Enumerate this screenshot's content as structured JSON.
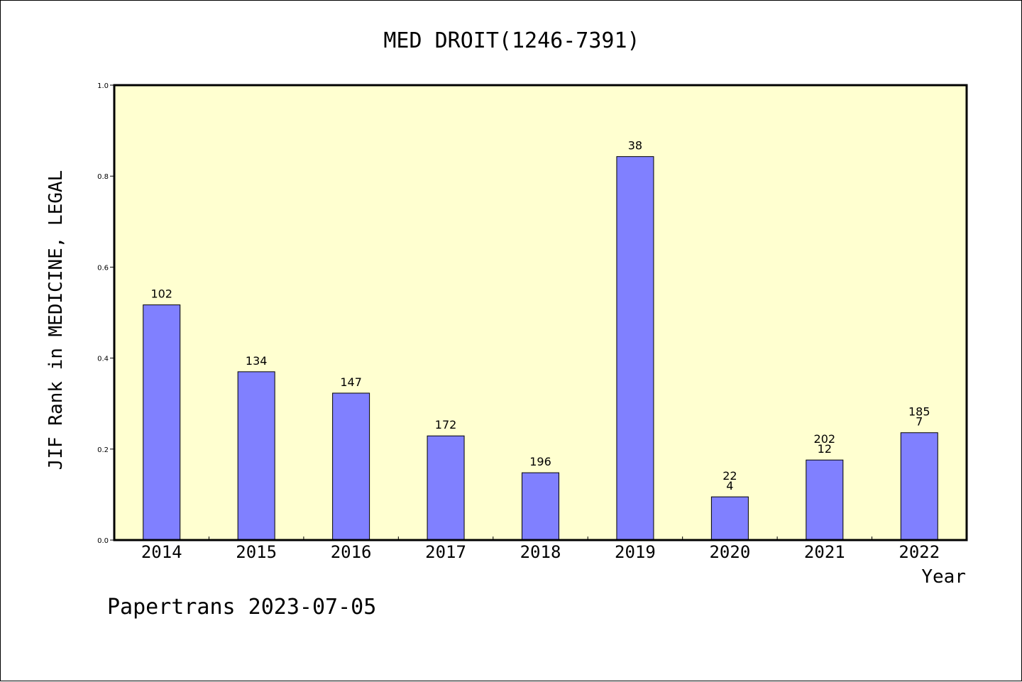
{
  "footer": "Papertrans 2023-07-05",
  "colors": {
    "plot_background": "#ffffd0",
    "bar_fill": "#8080ff",
    "bar_stroke": "#000000"
  },
  "chart_data": {
    "type": "bar",
    "title": "MED DROIT(1246-7391)",
    "xlabel": "Year",
    "ylabel": "JIF Rank in MEDICINE, LEGAL",
    "ylim": [
      0,
      1.0
    ],
    "yticks": [
      "0.0",
      "0.2",
      "0.4",
      "0.6",
      "0.8",
      "1.0"
    ],
    "grid": false,
    "categories": [
      "2014",
      "2015",
      "2016",
      "2017",
      "2018",
      "2019",
      "2020",
      "2021",
      "2022"
    ],
    "values": [
      0.517,
      0.37,
      0.323,
      0.229,
      0.148,
      0.843,
      0.095,
      0.176,
      0.236
    ],
    "labels": [
      [
        "102"
      ],
      [
        "134"
      ],
      [
        "147"
      ],
      [
        "172"
      ],
      [
        "196"
      ],
      [
        "38"
      ],
      [
        "22",
        "4"
      ],
      [
        "202",
        "12"
      ],
      [
        "185",
        "7"
      ]
    ]
  }
}
